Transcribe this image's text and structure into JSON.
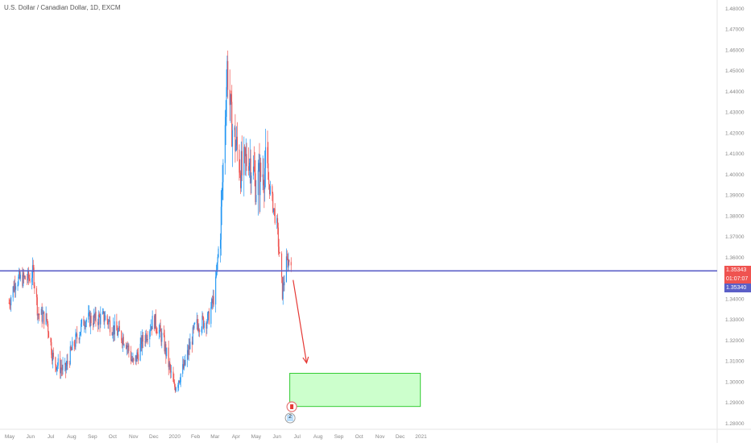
{
  "header": {
    "title": "U.S. Dollar / Canadian Dollar, 1D, EXCM"
  },
  "price_labels": {
    "current": "1.35343",
    "countdown": "01:07:07",
    "line": "1.35340"
  },
  "colors": {
    "up": "#2196f3",
    "down": "#ef5350",
    "level_line": "#5b5fc7",
    "target_zone": "#ccffcc",
    "target_border": "#33cc33",
    "arrow": "#e53935",
    "axis_text": "#888888"
  },
  "markers": {
    "event_count": "2"
  },
  "chart_data": {
    "type": "candlestick",
    "title": "U.S. Dollar / Canadian Dollar, 1D, EXCM",
    "ylim": [
      1.277,
      1.484
    ],
    "y_ticks": [
      "1.48000",
      "1.47000",
      "1.46000",
      "1.45000",
      "1.44000",
      "1.43000",
      "1.42000",
      "1.41000",
      "1.40000",
      "1.39000",
      "1.38000",
      "1.37000",
      "1.36000",
      "1.35000",
      "1.34000",
      "1.33000",
      "1.32000",
      "1.31000",
      "1.30000",
      "1.29000",
      "1.28000"
    ],
    "x_ticks": [
      "May",
      "Jun",
      "Jul",
      "Aug",
      "Sep",
      "Oct",
      "Nov",
      "Dec",
      "2020",
      "Feb",
      "Mar",
      "Apr",
      "May",
      "Jun",
      "Jul",
      "Aug",
      "Sep",
      "Oct",
      "Nov",
      "Dec",
      "2021"
    ],
    "path": [
      [
        "2019-04-30",
        1.338
      ],
      [
        "2019-05-10",
        1.349
      ],
      [
        "2019-05-31",
        1.35
      ],
      [
        "2019-06-05",
        1.353
      ],
      [
        "2019-06-12",
        1.333
      ],
      [
        "2019-06-25",
        1.33
      ],
      [
        "2019-07-05",
        1.31
      ],
      [
        "2019-07-22",
        1.305
      ],
      [
        "2019-08-01",
        1.315
      ],
      [
        "2019-08-20",
        1.33
      ],
      [
        "2019-09-05",
        1.33
      ],
      [
        "2019-09-20",
        1.331
      ],
      [
        "2019-10-01",
        1.326
      ],
      [
        "2019-10-20",
        1.32
      ],
      [
        "2019-11-01",
        1.308
      ],
      [
        "2019-11-15",
        1.32
      ],
      [
        "2019-12-01",
        1.33
      ],
      [
        "2019-12-15",
        1.32
      ],
      [
        "2019-12-31",
        1.297
      ],
      [
        "2020-01-15",
        1.307
      ],
      [
        "2020-02-01",
        1.327
      ],
      [
        "2020-02-20",
        1.33
      ],
      [
        "2020-03-01",
        1.343
      ],
      [
        "2020-03-10",
        1.38
      ],
      [
        "2020-03-19",
        1.452
      ],
      [
        "2020-03-25",
        1.425
      ],
      [
        "2020-04-10",
        1.4
      ],
      [
        "2020-04-20",
        1.41
      ],
      [
        "2020-05-01",
        1.395
      ],
      [
        "2020-05-15",
        1.404
      ],
      [
        "2020-06-01",
        1.375
      ],
      [
        "2020-06-09",
        1.343
      ],
      [
        "2020-06-15",
        1.357
      ],
      [
        "2020-06-22",
        1.36
      ]
    ],
    "horizontal_line": 1.3534,
    "target_zone": {
      "from": 1.288,
      "to": 1.304,
      "x_start": "2020-06-20",
      "x_end": "2020-12-31"
    },
    "projection_arrow": {
      "from": [
        "2020-06-25",
        1.349
      ],
      "to": [
        "2020-07-15",
        1.309
      ]
    }
  }
}
